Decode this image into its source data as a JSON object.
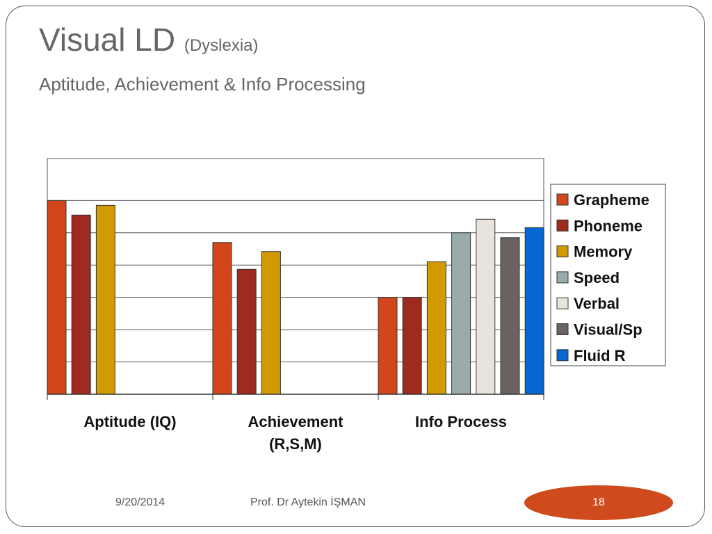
{
  "slide": {
    "title": "Visual LD",
    "title_suffix": "(Dyslexia)",
    "subtitle": "Aptitude, Achievement & Info Processing",
    "footer": {
      "date": "9/20/2014",
      "author": "Prof. Dr Aytekin İŞMAN",
      "page": "18"
    }
  },
  "chart_data": {
    "type": "bar",
    "categories": [
      "Aptitude (IQ)",
      "Achievement (R,S,M)",
      "Info Process"
    ],
    "series": [
      {
        "name": "Grapheme",
        "color": "#d2461b",
        "values": [
          6.0,
          4.7,
          3.0
        ]
      },
      {
        "name": "Phoneme",
        "color": "#9e2a20",
        "values": [
          5.55,
          3.87,
          3.0
        ]
      },
      {
        "name": "Memory",
        "color": "#d09a00",
        "values": [
          5.85,
          4.42,
          4.1
        ]
      },
      {
        "name": "Speed",
        "color": "#9aabab",
        "values": [
          null,
          null,
          5.0
        ]
      },
      {
        "name": "Verbal",
        "color": "#e8e4dc",
        "values": [
          null,
          null,
          5.42
        ]
      },
      {
        "name": "Visual/Sp",
        "color": "#6b6261",
        "values": [
          null,
          null,
          4.85
        ]
      },
      {
        "name": "Fluid R",
        "color": "#0766d0",
        "values": [
          null,
          null,
          5.16
        ]
      }
    ],
    "ylim": [
      0,
      7.3
    ],
    "y_gridlines": [
      1,
      2,
      3,
      4,
      5,
      6,
      7.3
    ],
    "grid": true,
    "legend": "right"
  }
}
